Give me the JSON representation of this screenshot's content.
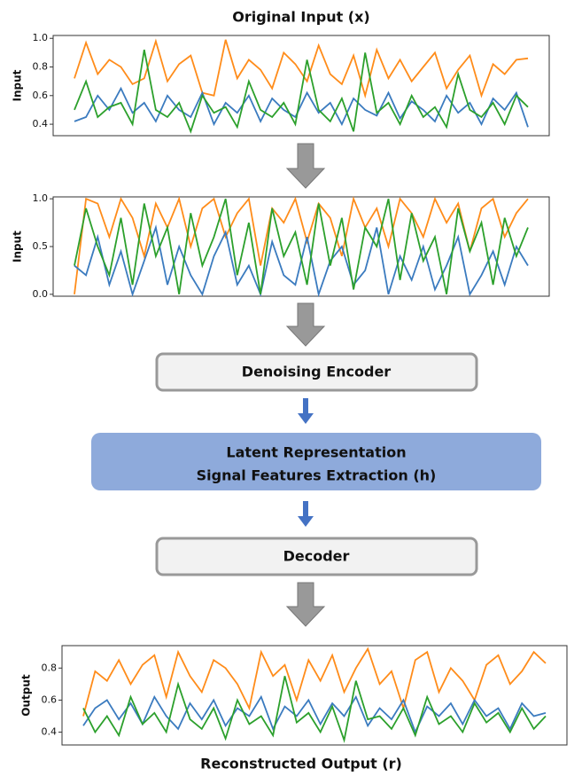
{
  "chart_data": [
    {
      "type": "line",
      "title": "Original Input (x)",
      "ylabel": "Input",
      "ylim": [
        0.32,
        1.02
      ],
      "yticks": [
        0.4,
        0.6,
        0.8,
        {
          "value": 1,
          "label": "1.0"
        }
      ],
      "series": [
        {
          "color": "#ff8c1a",
          "values": [
            0.72,
            0.97,
            0.75,
            0.85,
            0.8,
            0.68,
            0.72,
            0.98,
            0.7,
            0.82,
            0.88,
            0.62,
            0.6,
            0.99,
            0.72,
            0.85,
            0.78,
            0.65,
            0.9,
            0.82,
            0.7,
            0.95,
            0.75,
            0.68,
            0.88,
            0.6,
            0.92,
            0.72,
            0.85,
            0.7,
            0.8,
            0.9,
            0.65,
            0.78,
            0.88,
            0.6,
            0.82,
            0.75,
            0.85,
            0.86
          ]
        },
        {
          "color": "#3b7bbf",
          "values": [
            0.42,
            0.45,
            0.6,
            0.5,
            0.65,
            0.48,
            0.55,
            0.42,
            0.6,
            0.5,
            0.45,
            0.62,
            0.4,
            0.55,
            0.48,
            0.6,
            0.42,
            0.58,
            0.5,
            0.45,
            0.62,
            0.48,
            0.55,
            0.4,
            0.58,
            0.5,
            0.46,
            0.62,
            0.44,
            0.56,
            0.5,
            0.42,
            0.6,
            0.48,
            0.55,
            0.4,
            0.58,
            0.5,
            0.62,
            0.38
          ]
        },
        {
          "color": "#2ca02c",
          "values": [
            0.5,
            0.7,
            0.45,
            0.52,
            0.55,
            0.4,
            0.92,
            0.5,
            0.45,
            0.55,
            0.35,
            0.6,
            0.48,
            0.52,
            0.38,
            0.7,
            0.5,
            0.45,
            0.55,
            0.4,
            0.85,
            0.5,
            0.42,
            0.58,
            0.35,
            0.9,
            0.48,
            0.55,
            0.4,
            0.6,
            0.45,
            0.52,
            0.38,
            0.75,
            0.5,
            0.45,
            0.55,
            0.4,
            0.6,
            0.52
          ]
        }
      ]
    },
    {
      "type": "line",
      "ylabel": "Input",
      "ylim": [
        -0.02,
        1.02
      ],
      "yticks": [
        {
          "value": 0,
          "label": "0.0"
        },
        0.5,
        {
          "value": 1,
          "label": "1.0"
        }
      ],
      "series": [
        {
          "color": "#ff8c1a",
          "values": [
            0.0,
            1.0,
            0.95,
            0.6,
            1.0,
            0.8,
            0.4,
            0.95,
            0.7,
            1.0,
            0.5,
            0.9,
            1.0,
            0.6,
            0.85,
            1.0,
            0.3,
            0.9,
            0.75,
            1.0,
            0.55,
            0.95,
            0.8,
            0.4,
            1.0,
            0.7,
            0.9,
            0.5,
            1.0,
            0.85,
            0.6,
            1.0,
            0.75,
            0.95,
            0.45,
            0.9,
            1.0,
            0.6,
            0.85,
            1.0
          ]
        },
        {
          "color": "#3b7bbf",
          "values": [
            0.3,
            0.2,
            0.6,
            0.1,
            0.45,
            0.0,
            0.35,
            0.7,
            0.1,
            0.5,
            0.2,
            0.0,
            0.4,
            0.65,
            0.1,
            0.3,
            0.0,
            0.55,
            0.2,
            0.1,
            0.6,
            0.0,
            0.35,
            0.5,
            0.1,
            0.25,
            0.7,
            0.0,
            0.4,
            0.15,
            0.5,
            0.05,
            0.3,
            0.6,
            0.0,
            0.2,
            0.45,
            0.1,
            0.5,
            0.3
          ]
        },
        {
          "color": "#2ca02c",
          "values": [
            0.3,
            0.9,
            0.5,
            0.2,
            0.8,
            0.1,
            0.95,
            0.4,
            0.7,
            0.0,
            0.85,
            0.3,
            0.6,
            1.0,
            0.2,
            0.75,
            0.0,
            0.9,
            0.4,
            0.65,
            0.1,
            0.95,
            0.3,
            0.8,
            0.05,
            0.7,
            0.5,
            1.0,
            0.15,
            0.85,
            0.35,
            0.6,
            0.0,
            0.9,
            0.45,
            0.75,
            0.1,
            0.8,
            0.4,
            0.7
          ]
        }
      ]
    },
    {
      "type": "line",
      "title": "Reconstructed Output (r)",
      "ylabel": "Output",
      "ylim": [
        0.32,
        0.94
      ],
      "yticks": [
        0.4,
        0.6,
        0.8
      ],
      "series": [
        {
          "color": "#ff8c1a",
          "values": [
            0.5,
            0.78,
            0.72,
            0.85,
            0.7,
            0.82,
            0.88,
            0.62,
            0.9,
            0.75,
            0.65,
            0.85,
            0.8,
            0.7,
            0.55,
            0.9,
            0.75,
            0.82,
            0.6,
            0.85,
            0.72,
            0.88,
            0.65,
            0.8,
            0.92,
            0.7,
            0.78,
            0.55,
            0.85,
            0.9,
            0.65,
            0.8,
            0.72,
            0.6,
            0.82,
            0.88,
            0.7,
            0.78,
            0.9,
            0.83
          ]
        },
        {
          "color": "#3b7bbf",
          "values": [
            0.44,
            0.55,
            0.6,
            0.48,
            0.58,
            0.45,
            0.62,
            0.5,
            0.42,
            0.58,
            0.48,
            0.6,
            0.44,
            0.55,
            0.5,
            0.62,
            0.42,
            0.56,
            0.5,
            0.6,
            0.45,
            0.58,
            0.5,
            0.62,
            0.44,
            0.55,
            0.48,
            0.6,
            0.4,
            0.56,
            0.5,
            0.58,
            0.45,
            0.6,
            0.5,
            0.55,
            0.42,
            0.58,
            0.5,
            0.52
          ]
        },
        {
          "color": "#2ca02c",
          "values": [
            0.55,
            0.4,
            0.5,
            0.38,
            0.62,
            0.45,
            0.52,
            0.4,
            0.7,
            0.48,
            0.42,
            0.55,
            0.36,
            0.6,
            0.45,
            0.5,
            0.38,
            0.75,
            0.46,
            0.52,
            0.4,
            0.56,
            0.35,
            0.72,
            0.48,
            0.5,
            0.42,
            0.55,
            0.38,
            0.62,
            0.45,
            0.5,
            0.4,
            0.58,
            0.46,
            0.52,
            0.4,
            0.55,
            0.42,
            0.5
          ]
        }
      ]
    }
  ],
  "diagram": {
    "boxes": [
      {
        "label_lines": [
          "Denoising Encoder"
        ]
      },
      {
        "label_lines": [
          "Latent Representation",
          "Signal Features Extraction (h)"
        ]
      },
      {
        "label_lines": [
          "Decoder"
        ]
      }
    ]
  }
}
